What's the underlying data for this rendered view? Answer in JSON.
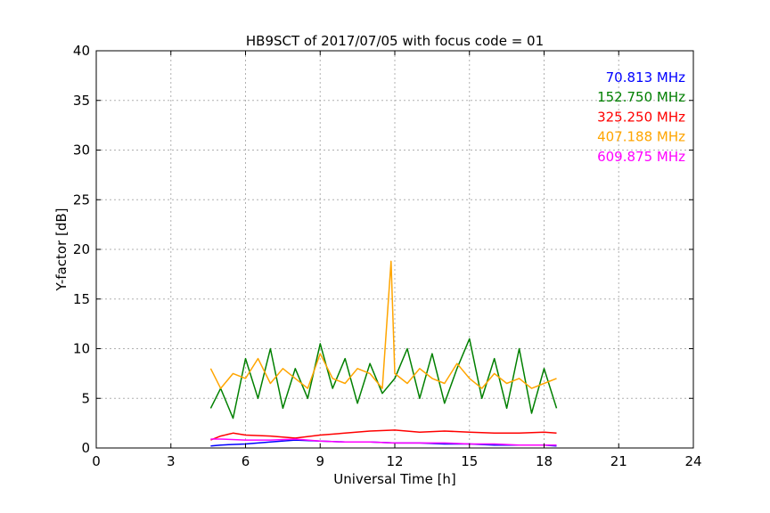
{
  "chart_data": {
    "type": "line",
    "title": "HB9SCT of 2017/07/05 with focus code = 01",
    "xlabel": "Universal Time [h]",
    "ylabel": "Y-factor [dB]",
    "xlim": [
      0,
      24
    ],
    "ylim": [
      0,
      40
    ],
    "x_ticks": [
      "0",
      "3",
      "6",
      "9",
      "12",
      "15",
      "18",
      "21",
      "24"
    ],
    "y_ticks": [
      "0",
      "5",
      "10",
      "15",
      "20",
      "25",
      "30",
      "35",
      "40"
    ],
    "grid": true,
    "legend_placement": "top-right",
    "series": [
      {
        "name": "70.813 MHz",
        "color": "#0000ff",
        "x": [
          4.6,
          5.0,
          6.0,
          7.0,
          8.0,
          9.0,
          10.0,
          11.0,
          12.0,
          13.0,
          14.0,
          15.0,
          16.0,
          17.0,
          18.0,
          18.5
        ],
        "y": [
          0.2,
          0.3,
          0.4,
          0.6,
          0.8,
          0.7,
          0.6,
          0.6,
          0.5,
          0.5,
          0.4,
          0.4,
          0.3,
          0.3,
          0.3,
          0.2
        ]
      },
      {
        "name": "152.750 MHz",
        "color": "#008000",
        "x": [
          4.6,
          5.0,
          5.5,
          6.0,
          6.5,
          7.0,
          7.5,
          8.0,
          8.5,
          9.0,
          9.5,
          10.0,
          10.5,
          11.0,
          11.5,
          12.0,
          12.5,
          13.0,
          13.5,
          14.0,
          14.5,
          15.0,
          15.5,
          16.0,
          16.5,
          17.0,
          17.5,
          18.0,
          18.5
        ],
        "y": [
          4.0,
          6.0,
          3.0,
          9.0,
          5.0,
          10.0,
          4.0,
          8.0,
          5.0,
          10.5,
          6.0,
          9.0,
          4.5,
          8.5,
          5.5,
          7.0,
          10.0,
          5.0,
          9.5,
          4.5,
          8.0,
          11.0,
          5.0,
          9.0,
          4.0,
          10.0,
          3.5,
          8.0,
          4.0
        ]
      },
      {
        "name": "325.250 MHz",
        "color": "#ff0000",
        "x": [
          4.6,
          5.0,
          5.5,
          6.0,
          7.0,
          8.0,
          9.0,
          10.0,
          11.0,
          12.0,
          13.0,
          14.0,
          15.0,
          16.0,
          17.0,
          18.0,
          18.5
        ],
        "y": [
          0.8,
          1.2,
          1.5,
          1.3,
          1.2,
          1.0,
          1.3,
          1.5,
          1.7,
          1.8,
          1.6,
          1.7,
          1.6,
          1.5,
          1.5,
          1.6,
          1.5
        ]
      },
      {
        "name": "407.188 MHz",
        "color": "#ffa500",
        "x": [
          4.6,
          5.0,
          5.5,
          6.0,
          6.5,
          7.0,
          7.5,
          8.0,
          8.5,
          9.0,
          9.5,
          10.0,
          10.5,
          11.0,
          11.5,
          11.85,
          12.0,
          12.5,
          13.0,
          13.5,
          14.0,
          14.5,
          15.0,
          15.5,
          16.0,
          16.5,
          17.0,
          17.5,
          18.0,
          18.5
        ],
        "y": [
          8.0,
          6.0,
          7.5,
          7.0,
          9.0,
          6.5,
          8.0,
          7.0,
          6.0,
          9.5,
          7.0,
          6.5,
          8.0,
          7.5,
          6.0,
          18.8,
          7.5,
          6.5,
          8.0,
          7.0,
          6.5,
          8.5,
          7.0,
          6.0,
          7.5,
          6.5,
          7.0,
          6.0,
          6.5,
          7.0
        ]
      },
      {
        "name": "609.875 MHz",
        "color": "#ff00ff",
        "x": [
          4.6,
          5.0,
          6.0,
          7.0,
          8.0,
          9.0,
          10.0,
          11.0,
          12.0,
          13.0,
          14.0,
          15.0,
          16.0,
          17.0,
          18.0,
          18.5
        ],
        "y": [
          0.9,
          0.9,
          0.8,
          0.8,
          0.9,
          0.7,
          0.6,
          0.6,
          0.5,
          0.5,
          0.5,
          0.4,
          0.4,
          0.3,
          0.3,
          0.3
        ]
      }
    ]
  }
}
